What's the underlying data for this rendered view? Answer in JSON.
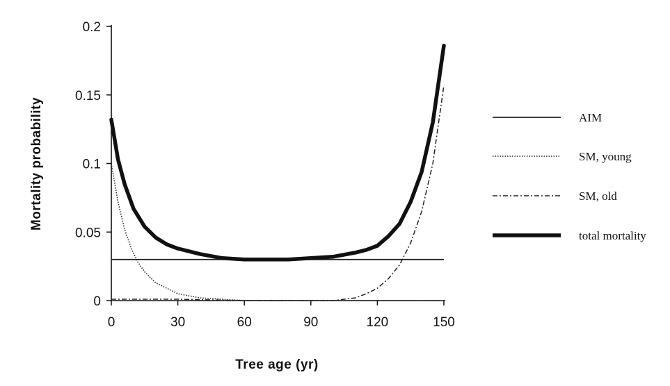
{
  "chart_data": {
    "type": "line",
    "xlabel": "Tree age (yr)",
    "ylabel": "Mortality probability",
    "xlim": [
      0,
      150
    ],
    "ylim": [
      0,
      0.2
    ],
    "x_ticks": [
      0,
      30,
      60,
      90,
      120,
      150
    ],
    "y_ticks": [
      0,
      0.05,
      0.1,
      0.15,
      0.2
    ],
    "x_tick_labels": [
      "0",
      "30",
      "60",
      "90",
      "120",
      "150"
    ],
    "y_tick_labels": [
      "0",
      "0.05",
      "0.1",
      "0.15",
      "0.2"
    ],
    "grid": false,
    "legend_position": "right",
    "series": [
      {
        "name": "AIM",
        "style": "solid-thin",
        "x": [
          0,
          150
        ],
        "y": [
          0.03,
          0.03
        ]
      },
      {
        "name": "SM, young",
        "style": "dotted",
        "x": [
          0,
          3,
          6,
          9,
          12,
          15,
          20,
          25,
          30,
          40,
          50,
          60,
          90,
          120,
          150
        ],
        "y": [
          0.1,
          0.072,
          0.052,
          0.038,
          0.028,
          0.021,
          0.013,
          0.009,
          0.005,
          0.002,
          0.001,
          0.0,
          0.0,
          0.0,
          0.0
        ]
      },
      {
        "name": "SM, old",
        "style": "dash-dot",
        "x": [
          0,
          30,
          60,
          90,
          100,
          105,
          110,
          115,
          120,
          125,
          130,
          135,
          140,
          145,
          150
        ],
        "y": [
          0.001,
          0.001,
          0.0,
          0.0,
          0.0,
          0.001,
          0.002,
          0.005,
          0.009,
          0.016,
          0.026,
          0.042,
          0.065,
          0.1,
          0.157
        ]
      },
      {
        "name": "total mortality",
        "style": "solid-thick",
        "x": [
          0,
          3,
          6,
          10,
          15,
          20,
          25,
          30,
          40,
          50,
          60,
          70,
          80,
          90,
          100,
          110,
          115,
          120,
          125,
          130,
          135,
          140,
          145,
          150
        ],
        "y": [
          0.132,
          0.103,
          0.085,
          0.067,
          0.054,
          0.046,
          0.041,
          0.038,
          0.034,
          0.031,
          0.03,
          0.03,
          0.03,
          0.031,
          0.032,
          0.035,
          0.037,
          0.04,
          0.047,
          0.056,
          0.072,
          0.094,
          0.13,
          0.186
        ]
      }
    ]
  }
}
